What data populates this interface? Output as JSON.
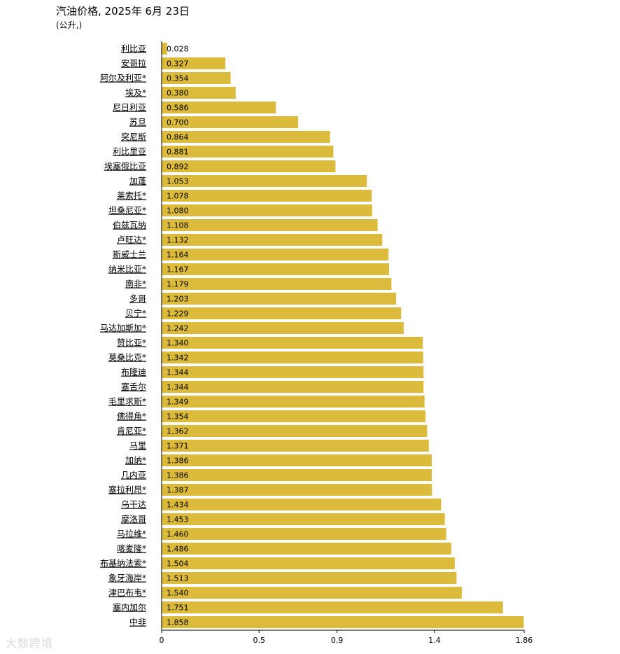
{
  "header": {
    "title": "汽油价格, 2025年 6月 23日",
    "subtitle": "(公升,)"
  },
  "watermark": "大数跨境",
  "colors": {
    "bar": "#dcbb3c",
    "axis": "#000000",
    "text": "#000000"
  },
  "chart_data": {
    "type": "bar",
    "orientation": "horizontal",
    "title": "汽油价格, 2025年 6月 23日",
    "subtitle": "(公升,)",
    "xlim": [
      0,
      1.86
    ],
    "xticks": [
      0,
      0.5,
      0.9,
      1.4,
      1.86
    ],
    "xtick_labels": [
      "0",
      "0.5",
      "0.9",
      "1.4",
      "1.86"
    ],
    "grid": false,
    "categories": [
      "利比亚",
      "安哥拉",
      "阿尔及利亚*",
      "埃及*",
      "尼日利亚",
      "苏旦",
      "突尼斯",
      "利比里亚",
      "埃塞俄比亚",
      "加蓬",
      "莱索托*",
      "坦桑尼亚*",
      "伯兹瓦纳",
      "卢旺达*",
      "斯威士兰",
      "纳米比亚*",
      "南非*",
      "多哥",
      "贝宁*",
      "马达加斯加*",
      "赞比亚*",
      "莫桑比克*",
      "布隆迪",
      "塞舌尔",
      "毛里求斯*",
      "佛得角*",
      "肯尼亚*",
      "马里",
      "加纳*",
      "几内亚",
      "塞拉利昂*",
      "乌干达",
      "摩洛哥",
      "马拉维*",
      "喀麦隆*",
      "布基纳法索*",
      "象牙海岸*",
      "津巴布韦*",
      "塞内加尔",
      "中非"
    ],
    "values": [
      0.028,
      0.327,
      0.354,
      0.38,
      0.586,
      0.7,
      0.864,
      0.881,
      0.892,
      1.053,
      1.078,
      1.08,
      1.108,
      1.132,
      1.164,
      1.167,
      1.179,
      1.203,
      1.229,
      1.242,
      1.34,
      1.342,
      1.344,
      1.344,
      1.349,
      1.354,
      1.362,
      1.371,
      1.386,
      1.386,
      1.387,
      1.434,
      1.453,
      1.46,
      1.486,
      1.504,
      1.513,
      1.54,
      1.751,
      1.858
    ],
    "value_labels": [
      "0.028",
      "0.327",
      "0.354",
      "0.380",
      "0.586",
      "0.700",
      "0.864",
      "0.881",
      "0.892",
      "1.053",
      "1.078",
      "1.080",
      "1.108",
      "1.132",
      "1.164",
      "1.167",
      "1.179",
      "1.203",
      "1.229",
      "1.242",
      "1.340",
      "1.342",
      "1.344",
      "1.344",
      "1.349",
      "1.354",
      "1.362",
      "1.371",
      "1.386",
      "1.386",
      "1.387",
      "1.434",
      "1.453",
      "1.460",
      "1.486",
      "1.504",
      "1.513",
      "1.540",
      "1.751",
      "1.858"
    ]
  }
}
